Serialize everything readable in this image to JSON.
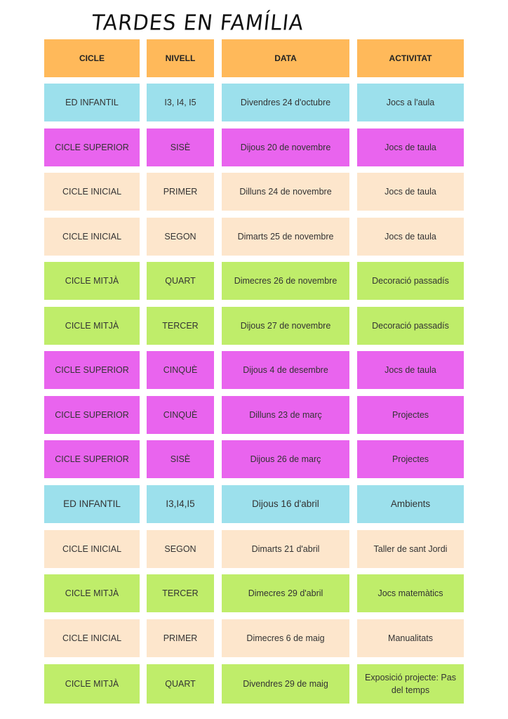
{
  "title": "TARDES EN FAMÍLIA",
  "headers": [
    "CICLE",
    "NIVELL",
    "DATA",
    "ACTIVITAT"
  ],
  "colors": {
    "header": "#ffb95a",
    "cyan": "#9ce0ec",
    "magenta": "#e964ee",
    "peach": "#fde6cc",
    "green": "#bfed6a"
  },
  "rows": [
    {
      "color": "cyan",
      "cells": [
        "ED INFANTIL",
        "I3, I4, I5",
        "Divendres 24 d'octubre",
        "Jocs a l'aula"
      ]
    },
    {
      "color": "magenta",
      "cells": [
        "CICLE SUPERIOR",
        "SISÈ",
        "Dijous 20 de novembre",
        "Jocs de taula"
      ]
    },
    {
      "color": "peach",
      "cells": [
        "CICLE INICIAL",
        "PRIMER",
        "Dilluns 24 de novembre",
        "Jocs de taula"
      ]
    },
    {
      "color": "peach",
      "cells": [
        "CICLE INICIAL",
        "SEGON",
        "Dimarts 25 de novembre",
        "Jocs de taula"
      ]
    },
    {
      "color": "green",
      "cells": [
        "CICLE MITJÀ",
        "QUART",
        "Dimecres 26 de novembre",
        "Decoració passadís"
      ]
    },
    {
      "color": "green",
      "cells": [
        "CICLE MITJÀ",
        "TERCER",
        "Dijous 27 de novembre",
        "Decoració passadís"
      ]
    },
    {
      "color": "magenta",
      "cells": [
        "CICLE SUPERIOR",
        "CINQUÈ",
        "Dijous 4 de desembre",
        "Jocs de taula"
      ]
    },
    {
      "color": "magenta",
      "cells": [
        "CICLE SUPERIOR",
        "CINQUÈ",
        "Dilluns 23 de març",
        "Projectes"
      ]
    },
    {
      "color": "magenta",
      "cells": [
        "CICLE SUPERIOR",
        "SISÈ",
        "Dijous 26 de març",
        "Projectes"
      ]
    },
    {
      "color": "cyan",
      "cells": [
        "ED INFANTIL",
        "I3,I4,I5",
        "Dijous 16 d'abril",
        "Ambients"
      ]
    },
    {
      "color": "peach",
      "cells": [
        "CICLE INICIAL",
        "SEGON",
        "Dimarts 21 d'abril",
        "Taller de sant Jordi"
      ]
    },
    {
      "color": "green",
      "cells": [
        "CICLE MITJÀ",
        "TERCER",
        "Dimecres 29 d'abril",
        "Jocs matemàtics"
      ]
    },
    {
      "color": "peach",
      "cells": [
        "CICLE INICIAL",
        "PRIMER",
        "Dimecres 6 de maig",
        "Manualitats"
      ]
    },
    {
      "color": "green",
      "cells": [
        "CICLE MITJÀ",
        "QUART",
        "Divendres 29 de maig",
        "Exposició projecte: Pas del temps"
      ]
    }
  ]
}
